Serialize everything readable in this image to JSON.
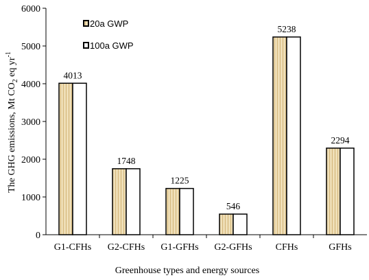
{
  "chart_data": {
    "type": "bar",
    "categories": [
      "G1-CFHs",
      "G2-CFHs",
      "G1-GFHs",
      "G2-GFHs",
      "CFHs",
      "GFHs"
    ],
    "series": [
      {
        "name": "20a GWP",
        "values": [
          4013,
          1748,
          1225,
          546,
          5238,
          2294
        ],
        "fill": "#e9d5a7",
        "pattern": "vertical-stripes"
      },
      {
        "name": "100a GWP",
        "values": [
          4013,
          1748,
          1225,
          546,
          5238,
          2294
        ],
        "fill": "#ffffff"
      }
    ],
    "data_labels": [
      "4013",
      "1748",
      "1225",
      "546",
      "5238",
      "2294"
    ],
    "xlabel": "Greenhouse types and energy sources",
    "ylabel": {
      "prefix": "The GHG emissions, Mt CO",
      "sub": "2",
      "mid": " eq yr",
      "sup": "-1"
    },
    "ylim": [
      0,
      6000
    ],
    "yticks": [
      0,
      1000,
      2000,
      3000,
      4000,
      5000,
      6000
    ],
    "grid": false,
    "legend_position": "top-left"
  }
}
